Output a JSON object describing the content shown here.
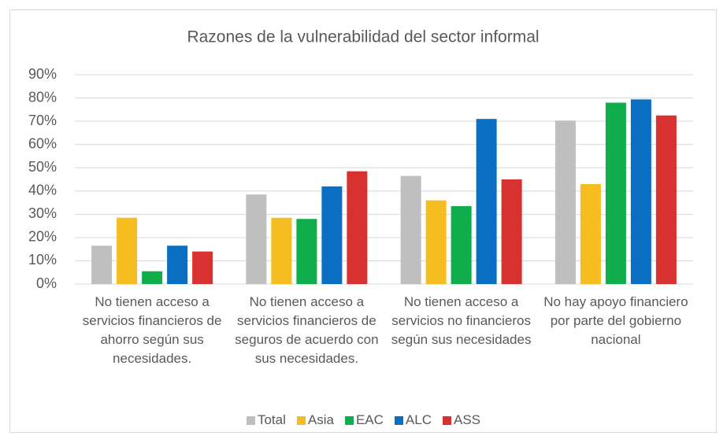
{
  "chart_data": {
    "type": "bar",
    "title": "Razones de la vulnerabilidad del sector informal",
    "categories": [
      "No tienen acceso a servicios financieros de ahorro según sus necesidades.",
      "No tienen acceso a servicios financieros de seguros de acuerdo con sus necesidades.",
      "No tienen acceso a servicios no financieros según sus necesidades",
      "No hay apoyo financiero por parte del gobierno nacional"
    ],
    "series": [
      {
        "name": "Total",
        "color": "#bfbfbf",
        "values": [
          16.5,
          38.5,
          46.5,
          70.3
        ]
      },
      {
        "name": "Asia",
        "color": "#f5bd1f",
        "values": [
          28.5,
          28.5,
          36,
          43
        ]
      },
      {
        "name": "EAC",
        "color": "#0fad4b",
        "values": [
          5.5,
          28,
          33.5,
          78
        ]
      },
      {
        "name": "ALC",
        "color": "#0a6fc2",
        "values": [
          16.5,
          42,
          71,
          79.4
        ]
      },
      {
        "name": "ASS",
        "color": "#d7322f",
        "values": [
          14,
          48.5,
          45,
          72.5
        ]
      }
    ],
    "ylim": [
      0,
      90
    ],
    "yticks": [
      {
        "value": 0,
        "label": "0%"
      },
      {
        "value": 10,
        "label": "10%"
      },
      {
        "value": 20,
        "label": "20%"
      },
      {
        "value": 30,
        "label": "30%"
      },
      {
        "value": 40,
        "label": "40%"
      },
      {
        "value": 50,
        "label": "50%"
      },
      {
        "value": 60,
        "label": "60%"
      },
      {
        "value": 70,
        "label": "70%"
      },
      {
        "value": 80,
        "label": "80%"
      },
      {
        "value": 90,
        "label": "90%"
      }
    ],
    "grid": true,
    "legend": "bottom"
  }
}
